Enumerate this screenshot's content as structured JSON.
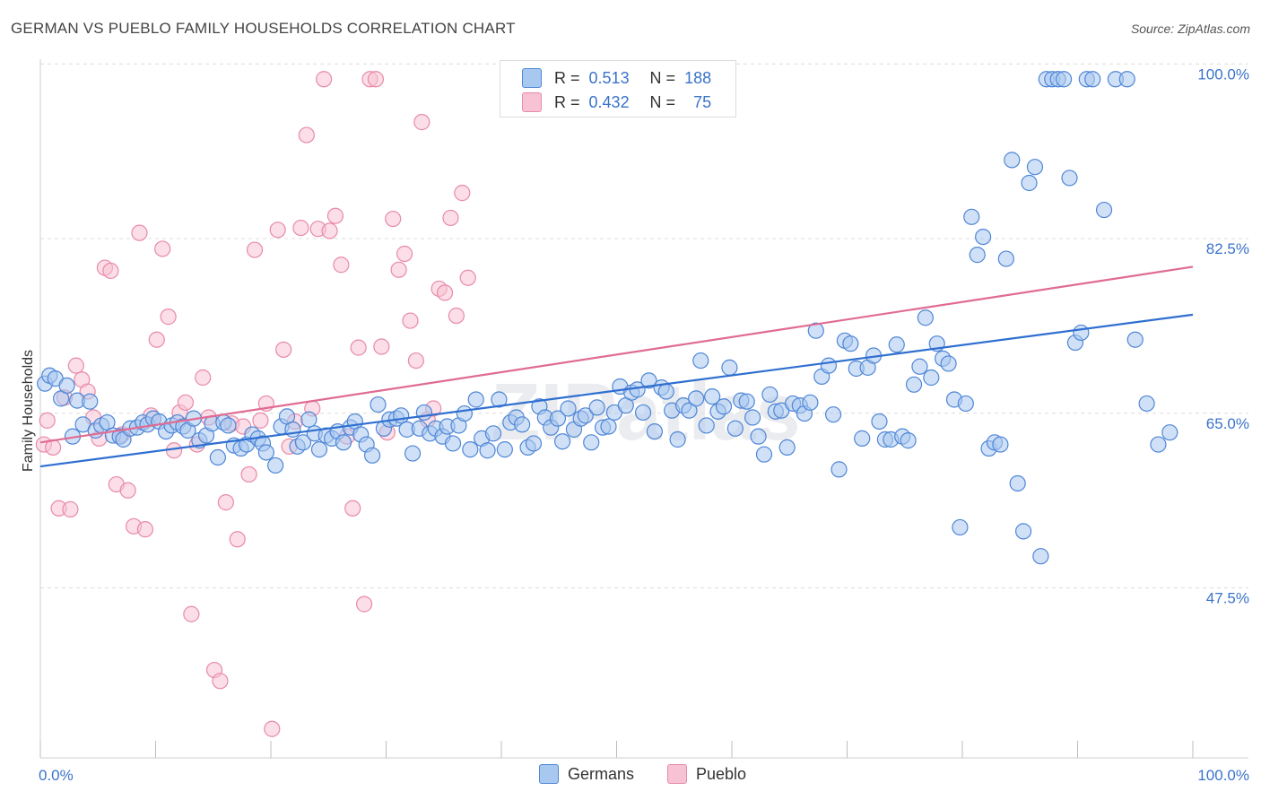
{
  "title": "GERMAN VS PUEBLO FAMILY HOUSEHOLDS CORRELATION CHART",
  "source": "Source: ZipAtlas.com",
  "watermark": "ZIPatlas",
  "legend_top": [
    {
      "r_label": "R =",
      "r_value": "0.513",
      "n_label": "N =",
      "n_value": "188"
    },
    {
      "r_label": "R =",
      "r_value": "0.432",
      "n_label": "N =",
      "n_value": "75"
    }
  ],
  "legend_bottom": [
    "Germans",
    "Pueblo"
  ],
  "colors": {
    "germans_fill": "#a9c8f0",
    "germans_stroke": "#4f86d6",
    "germans_line": "#2f6fd0",
    "pueblo_fill": "#f7c2d3",
    "pueblo_stroke": "#e88aa8",
    "pueblo_line": "#e06b93",
    "tick_label": "#3a73c9"
  },
  "chart_data": {
    "type": "scatter",
    "title": "GERMAN VS PUEBLO FAMILY HOUSEHOLDS CORRELATION CHART",
    "xlabel": "",
    "ylabel": "Family Households",
    "xlim": [
      0,
      100
    ],
    "ylim": [
      32,
      102
    ],
    "x_tick_labels": [
      "0.0%",
      "100.0%"
    ],
    "y_ticks": [
      47.5,
      65.0,
      82.5,
      100.0
    ],
    "y_tick_labels": [
      "47.5%",
      "65.0%",
      "82.5%",
      "100.0%"
    ],
    "grid": true,
    "series": [
      {
        "name": "Germans",
        "trend": {
          "x": [
            0,
            100
          ],
          "y": [
            61.2,
            76.4
          ]
        },
        "points": [
          [
            0.4,
            69.5
          ],
          [
            0.8,
            70.3
          ],
          [
            1.3,
            70.0
          ],
          [
            1.8,
            68.0
          ],
          [
            2.3,
            69.3
          ],
          [
            2.8,
            64.2
          ],
          [
            3.2,
            67.8
          ],
          [
            3.7,
            65.4
          ],
          [
            4.3,
            67.7
          ],
          [
            4.8,
            64.8
          ],
          [
            5.3,
            65.3
          ],
          [
            5.8,
            65.6
          ],
          [
            6.3,
            64.3
          ],
          [
            6.9,
            64.2
          ],
          [
            7.2,
            63.9
          ],
          [
            7.8,
            65.0
          ],
          [
            8.4,
            65.1
          ],
          [
            8.9,
            65.6
          ],
          [
            9.3,
            65.4
          ],
          [
            9.8,
            66.0
          ],
          [
            10.3,
            65.7
          ],
          [
            10.9,
            64.7
          ],
          [
            11.4,
            65.3
          ],
          [
            11.9,
            65.6
          ],
          [
            12.4,
            65.2
          ],
          [
            12.8,
            64.8
          ],
          [
            13.3,
            66.0
          ],
          [
            13.8,
            63.8
          ],
          [
            14.4,
            64.3
          ],
          [
            14.9,
            65.5
          ],
          [
            15.4,
            62.1
          ],
          [
            15.9,
            65.6
          ],
          [
            16.3,
            65.3
          ],
          [
            16.8,
            63.3
          ],
          [
            17.4,
            63.0
          ],
          [
            17.9,
            63.4
          ],
          [
            18.4,
            64.4
          ],
          [
            18.9,
            64.0
          ],
          [
            19.3,
            63.5
          ],
          [
            19.6,
            62.6
          ],
          [
            20.4,
            61.3
          ],
          [
            20.9,
            65.2
          ],
          [
            21.4,
            66.2
          ],
          [
            21.9,
            64.9
          ],
          [
            22.3,
            63.2
          ],
          [
            22.8,
            63.6
          ],
          [
            23.3,
            65.9
          ],
          [
            23.8,
            64.5
          ],
          [
            24.2,
            62.9
          ],
          [
            24.8,
            64.3
          ],
          [
            25.3,
            64.0
          ],
          [
            25.8,
            64.7
          ],
          [
            26.3,
            63.6
          ],
          [
            26.9,
            65.1
          ],
          [
            27.3,
            65.7
          ],
          [
            27.8,
            64.4
          ],
          [
            28.3,
            63.4
          ],
          [
            28.8,
            62.3
          ],
          [
            29.3,
            67.4
          ],
          [
            29.8,
            65.0
          ],
          [
            30.3,
            65.9
          ],
          [
            30.9,
            66.0
          ],
          [
            31.3,
            66.3
          ],
          [
            31.8,
            64.9
          ],
          [
            32.3,
            62.5
          ],
          [
            32.9,
            65.0
          ],
          [
            33.3,
            66.6
          ],
          [
            33.8,
            64.5
          ],
          [
            34.3,
            65.0
          ],
          [
            34.9,
            64.2
          ],
          [
            35.3,
            65.2
          ],
          [
            35.8,
            63.5
          ],
          [
            36.3,
            65.3
          ],
          [
            36.8,
            66.5
          ],
          [
            37.3,
            62.9
          ],
          [
            37.8,
            67.9
          ],
          [
            38.3,
            64.0
          ],
          [
            38.8,
            62.8
          ],
          [
            39.3,
            64.5
          ],
          [
            39.8,
            67.9
          ],
          [
            40.3,
            62.9
          ],
          [
            40.8,
            65.6
          ],
          [
            41.3,
            66.1
          ],
          [
            41.8,
            65.4
          ],
          [
            42.3,
            63.1
          ],
          [
            42.8,
            63.5
          ],
          [
            43.3,
            67.2
          ],
          [
            43.8,
            66.1
          ],
          [
            44.3,
            65.1
          ],
          [
            44.9,
            66.0
          ],
          [
            45.3,
            63.7
          ],
          [
            45.8,
            67.0
          ],
          [
            46.3,
            64.9
          ],
          [
            46.9,
            66.0
          ],
          [
            47.3,
            66.3
          ],
          [
            47.8,
            63.6
          ],
          [
            48.3,
            67.1
          ],
          [
            48.8,
            65.1
          ],
          [
            49.3,
            65.2
          ],
          [
            49.8,
            66.6
          ],
          [
            50.3,
            69.2
          ],
          [
            50.8,
            67.3
          ],
          [
            51.3,
            68.6
          ],
          [
            51.8,
            68.9
          ],
          [
            52.3,
            66.6
          ],
          [
            52.8,
            69.8
          ],
          [
            53.3,
            64.7
          ],
          [
            53.9,
            69.1
          ],
          [
            54.3,
            68.7
          ],
          [
            54.8,
            66.8
          ],
          [
            55.3,
            63.9
          ],
          [
            55.8,
            67.3
          ],
          [
            56.3,
            66.8
          ],
          [
            56.9,
            68.0
          ],
          [
            57.3,
            71.8
          ],
          [
            57.8,
            65.3
          ],
          [
            58.3,
            68.2
          ],
          [
            58.8,
            66.7
          ],
          [
            59.3,
            67.2
          ],
          [
            59.8,
            71.1
          ],
          [
            60.3,
            65.0
          ],
          [
            60.8,
            67.8
          ],
          [
            61.3,
            67.7
          ],
          [
            61.8,
            66.1
          ],
          [
            62.3,
            64.2
          ],
          [
            62.8,
            62.4
          ],
          [
            63.3,
            68.4
          ],
          [
            63.8,
            66.7
          ],
          [
            64.3,
            66.8
          ],
          [
            64.8,
            63.1
          ],
          [
            65.3,
            67.5
          ],
          [
            65.9,
            67.3
          ],
          [
            66.3,
            66.5
          ],
          [
            66.8,
            67.6
          ],
          [
            67.3,
            74.8
          ],
          [
            67.8,
            70.2
          ],
          [
            68.4,
            71.3
          ],
          [
            68.8,
            66.4
          ],
          [
            69.3,
            60.9
          ],
          [
            69.8,
            73.8
          ],
          [
            70.3,
            73.5
          ],
          [
            70.8,
            71.0
          ],
          [
            71.3,
            64.0
          ],
          [
            71.8,
            71.1
          ],
          [
            72.3,
            72.3
          ],
          [
            72.8,
            65.7
          ],
          [
            73.3,
            63.9
          ],
          [
            73.8,
            63.9
          ],
          [
            74.3,
            73.4
          ],
          [
            74.8,
            64.2
          ],
          [
            75.3,
            63.8
          ],
          [
            75.8,
            69.4
          ],
          [
            76.3,
            71.2
          ],
          [
            76.8,
            76.1
          ],
          [
            77.3,
            70.1
          ],
          [
            77.8,
            73.5
          ],
          [
            78.3,
            72.0
          ],
          [
            78.8,
            71.5
          ],
          [
            79.3,
            67.9
          ],
          [
            79.8,
            55.1
          ],
          [
            80.3,
            67.5
          ],
          [
            80.8,
            86.2
          ],
          [
            81.3,
            82.4
          ],
          [
            81.8,
            84.2
          ],
          [
            82.3,
            63.0
          ],
          [
            82.8,
            63.6
          ],
          [
            83.3,
            63.4
          ],
          [
            83.8,
            82.0
          ],
          [
            84.3,
            91.9
          ],
          [
            84.8,
            59.5
          ],
          [
            85.3,
            54.7
          ],
          [
            85.8,
            89.6
          ],
          [
            86.3,
            91.2
          ],
          [
            86.8,
            52.2
          ],
          [
            87.3,
            100.0
          ],
          [
            87.8,
            100.0
          ],
          [
            88.3,
            100.0
          ],
          [
            88.8,
            100.0
          ],
          [
            89.3,
            90.1
          ],
          [
            89.8,
            73.6
          ],
          [
            90.3,
            74.6
          ],
          [
            90.8,
            100.0
          ],
          [
            91.3,
            100.0
          ],
          [
            92.3,
            86.9
          ],
          [
            93.3,
            100.0
          ],
          [
            94.3,
            100.0
          ],
          [
            95.0,
            73.9
          ],
          [
            96.0,
            67.5
          ],
          [
            97.0,
            63.4
          ],
          [
            98.0,
            64.6
          ]
        ]
      },
      {
        "name": "Pueblo",
        "trend": {
          "x": [
            0,
            100
          ],
          "y": [
            63.6,
            81.2
          ]
        },
        "points": [
          [
            0.3,
            63.4
          ],
          [
            0.6,
            65.8
          ],
          [
            1.1,
            63.1
          ],
          [
            1.6,
            57.0
          ],
          [
            2.1,
            68.1
          ],
          [
            2.6,
            56.9
          ],
          [
            3.1,
            71.3
          ],
          [
            3.6,
            69.9
          ],
          [
            4.1,
            68.7
          ],
          [
            4.6,
            66.1
          ],
          [
            5.1,
            64.0
          ],
          [
            5.6,
            81.1
          ],
          [
            6.1,
            80.8
          ],
          [
            6.6,
            59.4
          ],
          [
            7.1,
            64.4
          ],
          [
            7.6,
            58.8
          ],
          [
            8.1,
            55.2
          ],
          [
            8.6,
            84.6
          ],
          [
            9.1,
            54.9
          ],
          [
            9.6,
            66.3
          ],
          [
            10.1,
            73.9
          ],
          [
            10.6,
            83.0
          ],
          [
            11.1,
            76.2
          ],
          [
            11.6,
            62.8
          ],
          [
            12.1,
            66.6
          ],
          [
            12.6,
            67.6
          ],
          [
            13.1,
            46.4
          ],
          [
            13.6,
            63.4
          ],
          [
            14.1,
            70.1
          ],
          [
            14.6,
            66.1
          ],
          [
            15.1,
            40.8
          ],
          [
            15.6,
            39.7
          ],
          [
            16.1,
            57.6
          ],
          [
            16.6,
            65.5
          ],
          [
            17.1,
            53.9
          ],
          [
            17.6,
            65.2
          ],
          [
            18.1,
            60.4
          ],
          [
            18.6,
            82.9
          ],
          [
            19.1,
            65.8
          ],
          [
            19.6,
            67.5
          ],
          [
            20.1,
            34.9
          ],
          [
            20.6,
            84.9
          ],
          [
            21.1,
            72.9
          ],
          [
            21.6,
            63.2
          ],
          [
            22.1,
            65.7
          ],
          [
            22.6,
            85.1
          ],
          [
            23.1,
            94.4
          ],
          [
            23.6,
            67.0
          ],
          [
            24.1,
            85.0
          ],
          [
            24.6,
            100.0
          ],
          [
            25.1,
            84.8
          ],
          [
            25.6,
            86.3
          ],
          [
            26.1,
            81.4
          ],
          [
            26.6,
            64.2
          ],
          [
            27.1,
            57.0
          ],
          [
            27.6,
            73.1
          ],
          [
            28.1,
            47.4
          ],
          [
            28.6,
            100.0
          ],
          [
            29.1,
            100.0
          ],
          [
            29.6,
            73.2
          ],
          [
            30.1,
            64.6
          ],
          [
            30.6,
            86.0
          ],
          [
            31.1,
            80.9
          ],
          [
            31.6,
            82.5
          ],
          [
            32.1,
            75.8
          ],
          [
            32.6,
            71.8
          ],
          [
            33.1,
            95.7
          ],
          [
            33.6,
            65.9
          ],
          [
            34.1,
            67.0
          ],
          [
            34.6,
            79.0
          ],
          [
            35.1,
            78.6
          ],
          [
            35.6,
            86.1
          ],
          [
            36.1,
            76.3
          ],
          [
            36.6,
            88.6
          ],
          [
            37.1,
            80.1
          ]
        ]
      }
    ]
  }
}
